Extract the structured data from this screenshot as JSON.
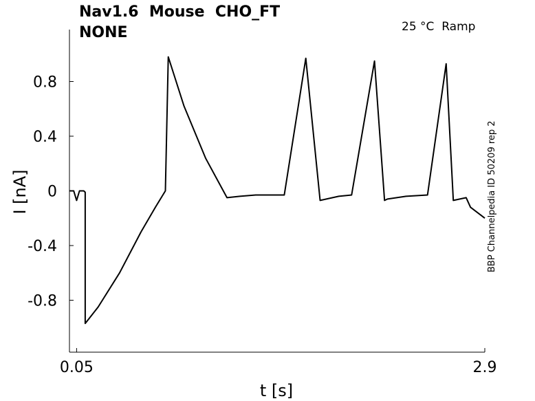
{
  "chart_data": {
    "type": "line",
    "title_lines": [
      "Nav1.6  Mouse  CHO_FT",
      "NONE"
    ],
    "annotation": "25 °C  Ramp",
    "side_label": "BBP Channelpedia ID 50209 rep 2",
    "xlabel": "t [s]",
    "ylabel": "I [nA]",
    "xlim": [
      0.0,
      2.9
    ],
    "ylim": [
      -1.18,
      1.18
    ],
    "xticks": [
      0.05,
      2.9
    ],
    "xtick_labels": [
      "0.05",
      "2.9"
    ],
    "yticks": [
      0.8,
      0.4,
      0,
      -0.4,
      -0.8
    ],
    "ytick_labels": [
      "0.8",
      "0.4",
      "0",
      "-0.4",
      "-0.8"
    ],
    "grid": false,
    "series": [
      {
        "color": "#000000",
        "x": [
          0.0,
          0.03,
          0.05,
          0.07,
          0.1,
          0.11,
          0.11,
          0.2,
          0.35,
          0.5,
          0.6,
          0.67,
          0.69,
          0.69,
          0.8,
          0.95,
          1.1,
          1.19,
          1.3,
          1.5,
          1.65,
          1.75,
          1.88,
          1.97,
          2.13,
          2.2,
          2.22,
          2.35,
          2.5,
          2.63,
          2.68,
          2.77,
          2.8,
          2.9
        ],
        "y": [
          0.0,
          0.0,
          -0.07,
          0.0,
          0.0,
          -0.01,
          -0.97,
          -0.85,
          -0.6,
          -0.3,
          -0.12,
          0.0,
          0.98,
          0.98,
          0.62,
          0.24,
          -0.05,
          -0.04,
          -0.03,
          -0.03,
          0.97,
          -0.07,
          -0.04,
          -0.03,
          0.95,
          -0.07,
          -0.06,
          -0.04,
          -0.03,
          0.93,
          -0.07,
          -0.05,
          -0.12,
          -0.2
        ]
      }
    ]
  }
}
